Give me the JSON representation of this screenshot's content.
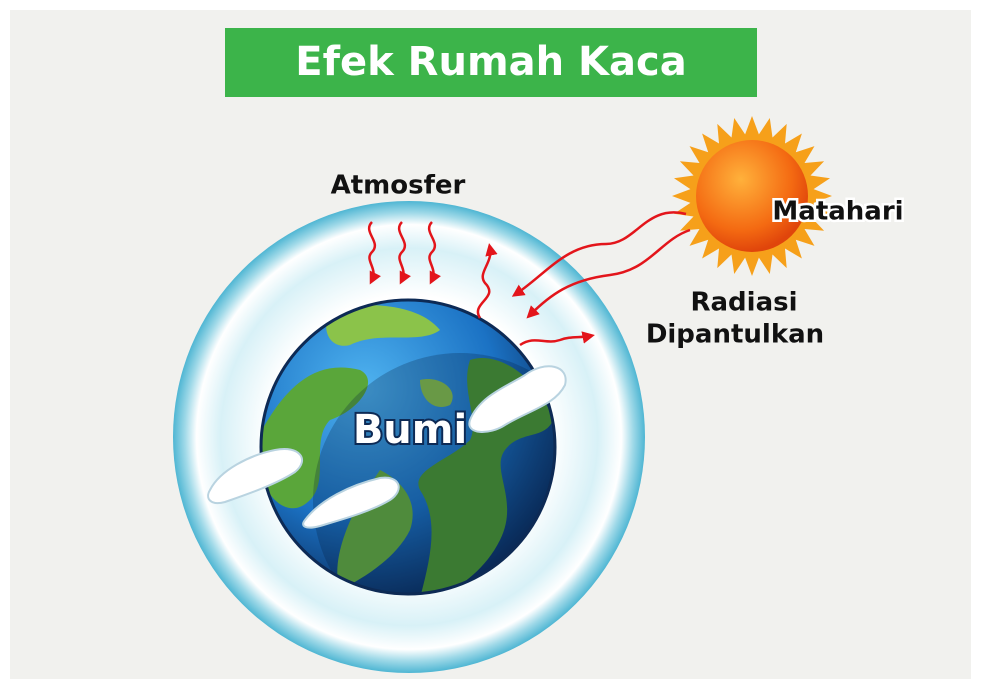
{
  "title": "Efek Rumah Kaca",
  "labels": {
    "atmosphere": "Atmosfer",
    "sun": "Matahari",
    "radiation": [
      "Radiasi",
      "Dipantulkan"
    ],
    "earth": "Bumi"
  }
}
